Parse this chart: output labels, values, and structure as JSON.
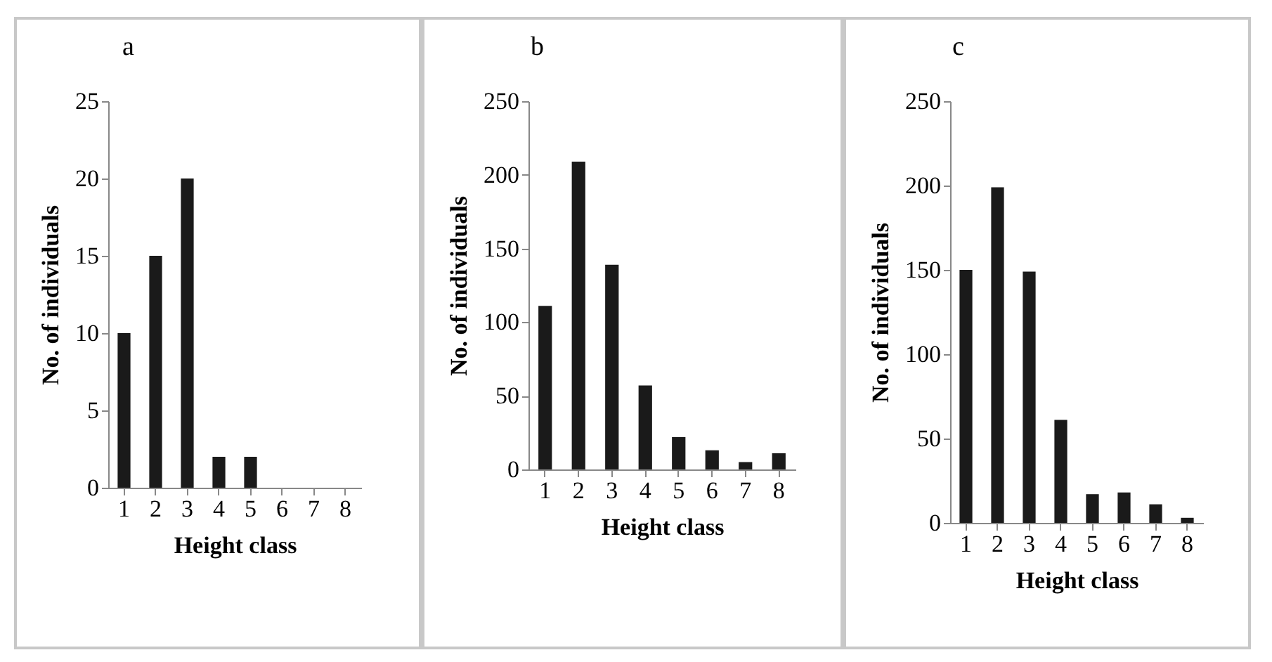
{
  "chart_data": [
    {
      "type": "bar",
      "title": "a",
      "xlabel": "Height class",
      "ylabel": "No. of individuals",
      "categories": [
        "1",
        "2",
        "3",
        "4",
        "5",
        "6",
        "7",
        "8"
      ],
      "values": [
        10,
        15,
        20,
        2,
        2,
        0,
        0,
        0
      ],
      "color": "#1a1a1a",
      "ylim": [
        0,
        25
      ],
      "yticks": [
        0,
        5,
        10,
        15,
        20,
        25
      ]
    },
    {
      "type": "bar",
      "title": "b",
      "xlabel": "Height class",
      "ylabel": "No. of individuals",
      "categories": [
        "1",
        "2",
        "3",
        "4",
        "5",
        "6",
        "7",
        "8"
      ],
      "values": [
        111,
        209,
        139,
        57,
        22,
        13,
        5,
        11
      ],
      "color": "#1a1a1a",
      "ylim": [
        0,
        250
      ],
      "yticks": [
        0,
        50,
        100,
        150,
        200,
        250
      ]
    },
    {
      "type": "bar",
      "title": "c",
      "xlabel": "Height class",
      "ylabel": "No. of individuals",
      "categories": [
        "1",
        "2",
        "3",
        "4",
        "5",
        "6",
        "7",
        "8"
      ],
      "values": [
        150,
        199,
        149,
        61,
        17,
        18,
        11,
        3
      ],
      "color": "#1a1a1a",
      "ylim": [
        0,
        250
      ],
      "yticks": [
        0,
        50,
        100,
        150,
        200,
        250
      ]
    }
  ]
}
